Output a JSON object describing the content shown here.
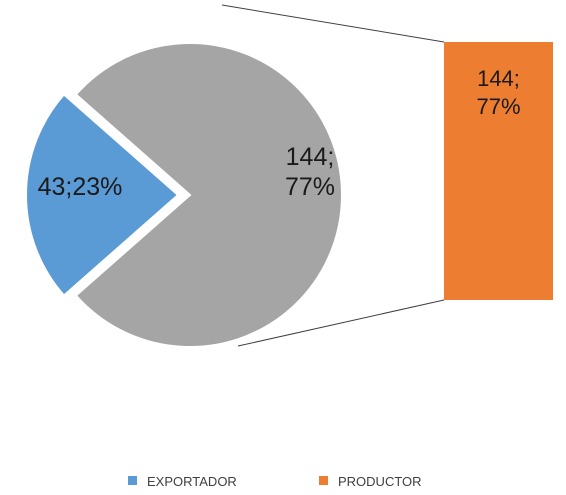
{
  "chart_data": {
    "type": "pie",
    "subtype": "bar-of-pie",
    "slices": [
      {
        "name": "EXPORTADOR",
        "value": 43,
        "percent": 23,
        "label_lines": [
          "43;23%"
        ],
        "color": "#5b9bd5",
        "exploded": true
      },
      {
        "name": "PRODUCTOR",
        "value": 144,
        "percent": 77,
        "label_lines": [
          "144;",
          "77%"
        ],
        "color": "#a5a5a5",
        "linked_to_bar": true
      }
    ],
    "secondary_bar": {
      "segments": [
        {
          "name": "PRODUCTOR",
          "value": 144,
          "percent": 77,
          "label_lines": [
            "144;",
            "77%"
          ],
          "color": "#ed7d31"
        }
      ]
    },
    "legend": {
      "position": "bottom",
      "items": [
        {
          "label": "EXPORTADOR",
          "color": "#5b9bd5"
        },
        {
          "label": "PRODUCTOR",
          "color": "#ed7d31"
        }
      ]
    },
    "connector_color": "#404040"
  }
}
